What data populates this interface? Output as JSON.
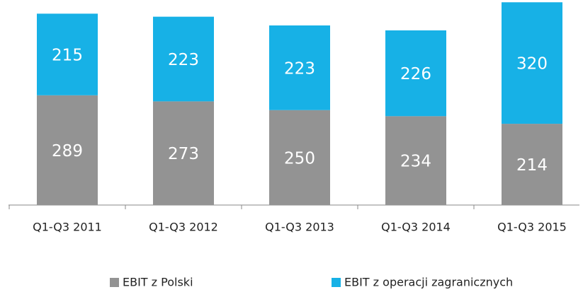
{
  "chart_data": {
    "type": "stacked_bar",
    "categories": [
      "Q1-Q3 2011",
      "Q1-Q3 2012",
      "Q1-Q3 2013",
      "Q1-Q3 2014",
      "Q1-Q3 2015"
    ],
    "series": [
      {
        "name": "EBIT z Polski",
        "color": "#939393",
        "values": [
          289,
          273,
          250,
          234,
          214
        ]
      },
      {
        "name": "EBIT z operacji zagranicznych",
        "color": "#17b1e6",
        "values": [
          215,
          223,
          223,
          226,
          320
        ]
      }
    ],
    "ylim": [
      0,
      540
    ],
    "legend": "bottom"
  }
}
